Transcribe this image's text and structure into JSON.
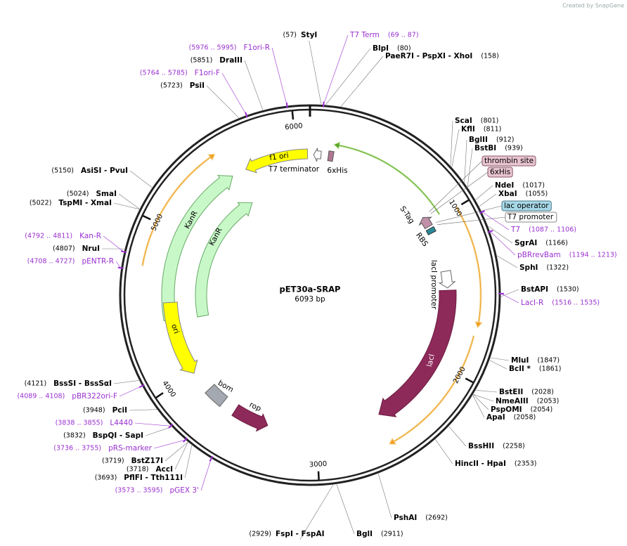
{
  "header": {
    "credit": "Created by SnapGene"
  },
  "plasmid": {
    "name": "pET30a-SRAP",
    "length": "6093 bp"
  },
  "ticks": [
    1000,
    2000,
    3000,
    4000,
    5000,
    6000
  ],
  "features": [
    {
      "label": "f1 ori"
    },
    {
      "label": "T7 terminator"
    },
    {
      "label": "6xHis"
    },
    {
      "label": "KanR"
    },
    {
      "label": "KanR"
    },
    {
      "label": "ori"
    },
    {
      "label": "bom"
    },
    {
      "label": "rop"
    },
    {
      "label": "lacI"
    },
    {
      "label": "lacI promoter"
    },
    {
      "label": "S-Tag"
    },
    {
      "label": "RBS"
    },
    {
      "label": "thrombin site"
    },
    {
      "label": "6xHis"
    },
    {
      "label": "lac operator"
    },
    {
      "label": "T7 promoter"
    }
  ],
  "enzymes": [
    {
      "name": "StyI",
      "position": "(57)"
    },
    {
      "name": "BlpI",
      "position": "(80)"
    },
    {
      "name": "PaeR7I - PspXI - XhoI",
      "position": "(158)"
    },
    {
      "name": "ScaI",
      "position": "(801)"
    },
    {
      "name": "KflI",
      "position": "(811)"
    },
    {
      "name": "BglII",
      "position": "(912)"
    },
    {
      "name": "BstBI",
      "position": "(939)"
    },
    {
      "name": "NdeI",
      "position": "(1017)"
    },
    {
      "name": "XbaI",
      "position": "(1055)"
    },
    {
      "name": "SgrAI",
      "position": "(1166)"
    },
    {
      "name": "SphI",
      "position": "(1322)"
    },
    {
      "name": "BstAPI",
      "position": "(1530)"
    },
    {
      "name": "MluI",
      "position": "(1847)"
    },
    {
      "name": "BclI *",
      "position": "(1861)"
    },
    {
      "name": "BstEII",
      "position": "(2028)"
    },
    {
      "name": "NmeAIII",
      "position": "(2053)"
    },
    {
      "name": "PspOMI",
      "position": "(2054)"
    },
    {
      "name": "ApaI",
      "position": "(2058)"
    },
    {
      "name": "BssHII",
      "position": "(2258)"
    },
    {
      "name": "HincII - HpaI",
      "position": "(2353)"
    },
    {
      "name": "PshAI",
      "position": "(2692)"
    },
    {
      "name": "BglI",
      "position": "(2911)"
    },
    {
      "name": "FspI - FspAI",
      "position": "(2929)"
    },
    {
      "name": "DraIII",
      "position": "(5851)"
    },
    {
      "name": "PsiI",
      "position": "(5723)"
    },
    {
      "name": "AsiSI - PvuI",
      "position": "(5150)"
    },
    {
      "name": "SmaI",
      "position": "(5024)"
    },
    {
      "name": "TspMI - XmaI",
      "position": "(5022)"
    },
    {
      "name": "NruI",
      "position": "(4807)"
    },
    {
      "name": "BssSI - BssSαI",
      "position": "(4121)"
    },
    {
      "name": "PciI",
      "position": "(3948)"
    },
    {
      "name": "BspQI - SapI",
      "position": "(3832)"
    },
    {
      "name": "BstZ17I",
      "position": "(3719)"
    },
    {
      "name": "AccI",
      "position": "(3718)"
    },
    {
      "name": "PflFI - Tth111I",
      "position": "(3693)"
    }
  ],
  "primers": [
    {
      "name": "T7 Term",
      "range": "(69 .. 87)"
    },
    {
      "name": "T7",
      "range": "(1087 .. 1106)"
    },
    {
      "name": "pBRrevBam",
      "range": "(1194 .. 1213)"
    },
    {
      "name": "LacI-R",
      "range": "(1516 .. 1535)"
    },
    {
      "name": "F1ori-R",
      "range": "(5976 .. 5995)"
    },
    {
      "name": "F1ori-F",
      "range": "(5764 .. 5785)"
    },
    {
      "name": "Kan-R",
      "range": "(4792 .. 4811)"
    },
    {
      "name": "pENTR-R",
      "range": "(4708 .. 4727)"
    },
    {
      "name": "pBR322ori-F",
      "range": "(4089 .. 4108)"
    },
    {
      "name": "L4440",
      "range": "(3838 .. 3855)"
    },
    {
      "name": "pRS-marker",
      "range": "(3736 .. 3755)"
    },
    {
      "name": "pGEX 3'",
      "range": "(3573 .. 3595)"
    }
  ]
}
